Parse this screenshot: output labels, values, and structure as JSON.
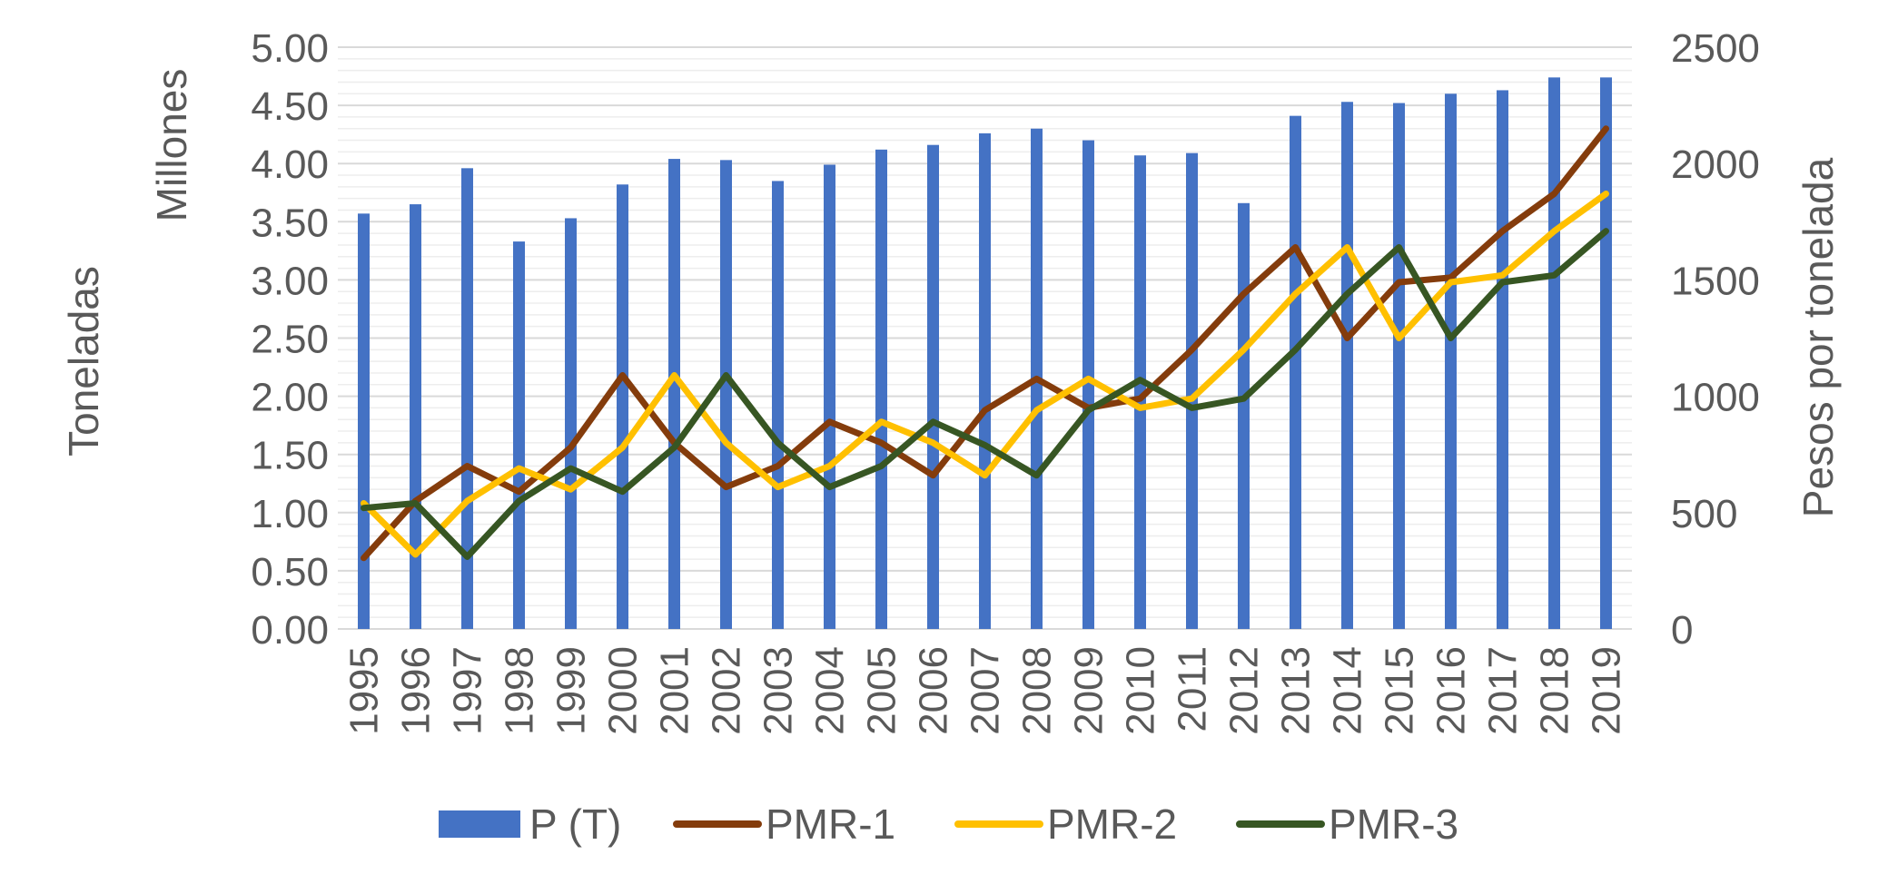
{
  "chart_data": {
    "type": "bar",
    "categories": [
      "1995",
      "1996",
      "1997",
      "1998",
      "1999",
      "2000",
      "2001",
      "2002",
      "2003",
      "2004",
      "2005",
      "2006",
      "2007",
      "2008",
      "2009",
      "2010",
      "2011",
      "2012",
      "2013",
      "2014",
      "2015",
      "2016",
      "2017",
      "2018",
      "2019"
    ],
    "left_axis": {
      "title": "Toneladas",
      "units_label": "Millones",
      "range": [
        0,
        5
      ],
      "ticks": [
        "0.00",
        "0.50",
        "1.00",
        "1.50",
        "2.00",
        "2.50",
        "3.00",
        "3.50",
        "4.00",
        "4.50",
        "5.00"
      ],
      "tick_step": 0.5,
      "minor_gridline_step": 0.1
    },
    "right_axis": {
      "title": "Pesos por tonelada",
      "range": [
        0,
        2500
      ],
      "ticks": [
        "0",
        "500",
        "1000",
        "1500",
        "2000",
        "2500"
      ],
      "tick_step": 500
    },
    "series": [
      {
        "name": "P (T)",
        "kind": "bar",
        "axis": "left",
        "color": "#4472C4",
        "values": [
          3.57,
          3.65,
          3.96,
          3.33,
          3.53,
          3.82,
          4.04,
          4.03,
          3.85,
          3.99,
          4.12,
          4.16,
          4.26,
          4.3,
          4.2,
          4.07,
          4.09,
          3.66,
          4.41,
          4.53,
          4.52,
          4.6,
          4.63,
          4.74,
          4.74
        ]
      },
      {
        "name": "PMR-1",
        "kind": "line",
        "axis": "right",
        "color": "#843C0C",
        "values": [
          305,
          550,
          700,
          590,
          780,
          1090,
          800,
          610,
          700,
          890,
          800,
          660,
          940,
          1075,
          950,
          990,
          1200,
          1440,
          1640,
          1250,
          1490,
          1510,
          1710,
          1870,
          2150
        ]
      },
      {
        "name": "PMR-2",
        "kind": "line",
        "axis": "right",
        "color": "#FFC000",
        "values": [
          540,
          320,
          550,
          690,
          600,
          780,
          1090,
          800,
          610,
          700,
          890,
          800,
          660,
          940,
          1075,
          950,
          990,
          1200,
          1440,
          1640,
          1250,
          1490,
          1520,
          1710,
          1870
        ]
      },
      {
        "name": "PMR-3",
        "kind": "line",
        "axis": "right",
        "color": "#375623",
        "values": [
          520,
          540,
          310,
          550,
          690,
          590,
          780,
          1090,
          800,
          610,
          700,
          890,
          790,
          660,
          940,
          1070,
          950,
          990,
          1200,
          1440,
          1640,
          1250,
          1490,
          1520,
          1710
        ]
      }
    ],
    "legend_position": "bottom",
    "grid": true
  }
}
